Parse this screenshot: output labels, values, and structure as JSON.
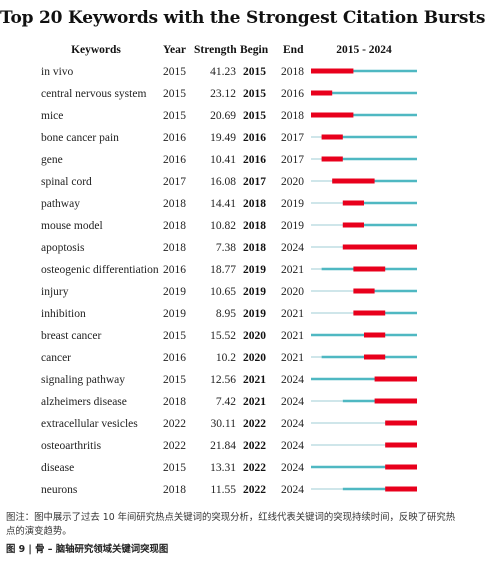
{
  "chart_data": {
    "type": "table",
    "title": "Top 20 Keywords with the Strongest Citation Bursts",
    "columns": [
      "Keywords",
      "Year",
      "Strength",
      "Begin",
      "End",
      "2015 - 2024"
    ],
    "timeline_range": [
      2015,
      2024
    ],
    "rows": [
      {
        "keyword": "in vivo",
        "year": "2015",
        "strength": "41.23",
        "begin": "2015",
        "end": "2018"
      },
      {
        "keyword": "central nervous system",
        "year": "2015",
        "strength": "23.12",
        "begin": "2015",
        "end": "2016"
      },
      {
        "keyword": "mice",
        "year": "2015",
        "strength": "20.69",
        "begin": "2015",
        "end": "2018"
      },
      {
        "keyword": "bone cancer pain",
        "year": "2016",
        "strength": "19.49",
        "begin": "2016",
        "end": "2017"
      },
      {
        "keyword": "gene",
        "year": "2016",
        "strength": "10.41",
        "begin": "2016",
        "end": "2017"
      },
      {
        "keyword": "spinal cord",
        "year": "2017",
        "strength": "16.08",
        "begin": "2017",
        "end": "2020"
      },
      {
        "keyword": "pathway",
        "year": "2018",
        "strength": "14.41",
        "begin": "2018",
        "end": "2019"
      },
      {
        "keyword": "mouse model",
        "year": "2018",
        "strength": "10.82",
        "begin": "2018",
        "end": "2019"
      },
      {
        "keyword": "apoptosis",
        "year": "2018",
        "strength": "7.38",
        "begin": "2018",
        "end": "2024"
      },
      {
        "keyword": "osteogenic differentiation",
        "year": "2016",
        "strength": "18.77",
        "begin": "2019",
        "end": "2021"
      },
      {
        "keyword": "injury",
        "year": "2019",
        "strength": "10.65",
        "begin": "2019",
        "end": "2020"
      },
      {
        "keyword": "inhibition",
        "year": "2019",
        "strength": "8.95",
        "begin": "2019",
        "end": "2021"
      },
      {
        "keyword": "breast cancer",
        "year": "2015",
        "strength": "15.52",
        "begin": "2020",
        "end": "2021"
      },
      {
        "keyword": "cancer",
        "year": "2016",
        "strength": "10.2",
        "begin": "2020",
        "end": "2021"
      },
      {
        "keyword": "signaling pathway",
        "year": "2015",
        "strength": "12.56",
        "begin": "2021",
        "end": "2024"
      },
      {
        "keyword": "alzheimers disease",
        "year": "2018",
        "strength": "7.42",
        "begin": "2021",
        "end": "2024"
      },
      {
        "keyword": "extracellular vesicles",
        "year": "2022",
        "strength": "30.11",
        "begin": "2022",
        "end": "2024"
      },
      {
        "keyword": "osteoarthritis",
        "year": "2022",
        "strength": "21.84",
        "begin": "2022",
        "end": "2024"
      },
      {
        "keyword": "disease",
        "year": "2015",
        "strength": "13.31",
        "begin": "2022",
        "end": "2024"
      },
      {
        "keyword": "neurons",
        "year": "2018",
        "strength": "11.55",
        "begin": "2022",
        "end": "2024"
      }
    ]
  },
  "colors": {
    "burst": "#e8001c",
    "active": "#4fb8c2",
    "inactive": "#cfe6ea"
  },
  "caption": "图注：图中展示了过去 10 年间研究热点关键词的突现分析，红线代表关键词的突现持续时间，反映了研究热点的演变趋势。",
  "figure_label": "图 9 | 骨 – 脑轴研究领域关键词突现图"
}
